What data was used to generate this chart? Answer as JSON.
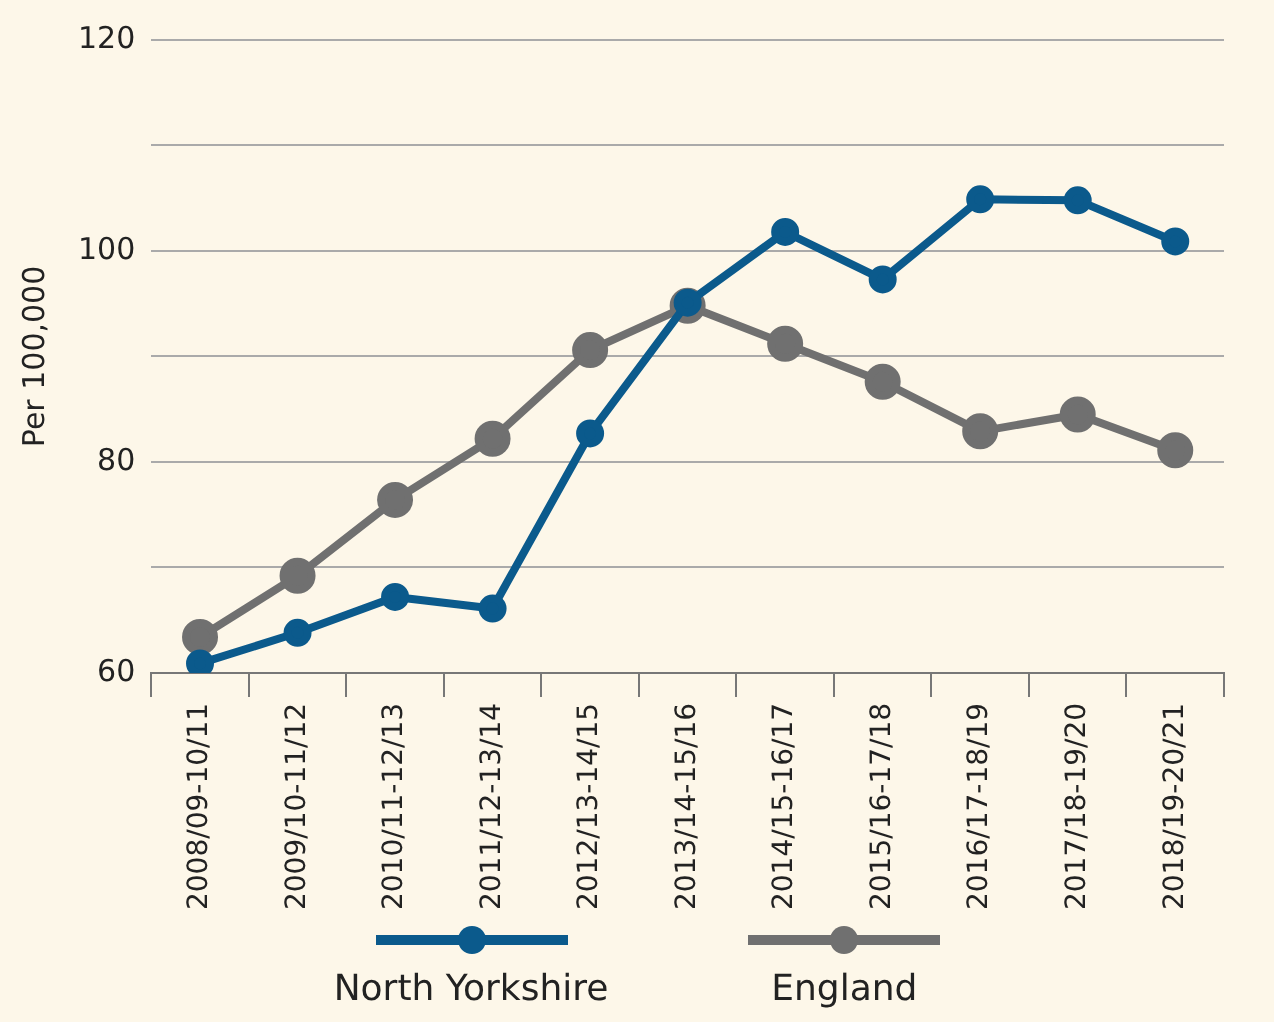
{
  "chart_data": {
    "type": "line",
    "ylabel": "Per 100,000",
    "categories": [
      "2008/09-10/11",
      "2009/10-11/12",
      "2010/11-12/13",
      "2011/12-13/14",
      "2012/13-14/15",
      "2013/14-15/16",
      "2014/15-16/17",
      "2015/16-17/18",
      "2016/17-18/19",
      "2017/18-19/20",
      "2018/19-20/21"
    ],
    "series": [
      {
        "name": "North Yorkshire",
        "color": "#0b5a8c",
        "values": [
          60.9,
          63.8,
          67.2,
          66.1,
          82.7,
          95.1,
          101.8,
          97.3,
          104.9,
          104.8,
          100.9
        ]
      },
      {
        "name": "England",
        "color": "#707070",
        "values": [
          63.4,
          69.2,
          76.4,
          82.2,
          90.6,
          94.8,
          91.2,
          87.6,
          82.9,
          84.5,
          81.1
        ]
      }
    ],
    "ylim": [
      60,
      120
    ],
    "yticks": [
      60,
      {
        "value": 70,
        "label": null
      },
      80,
      {
        "value": 90,
        "label": null
      },
      100,
      {
        "value": 110,
        "label": null
      },
      120
    ],
    "grid": "y",
    "legend": "bottom",
    "marker": "circle",
    "line_style": "solid"
  }
}
